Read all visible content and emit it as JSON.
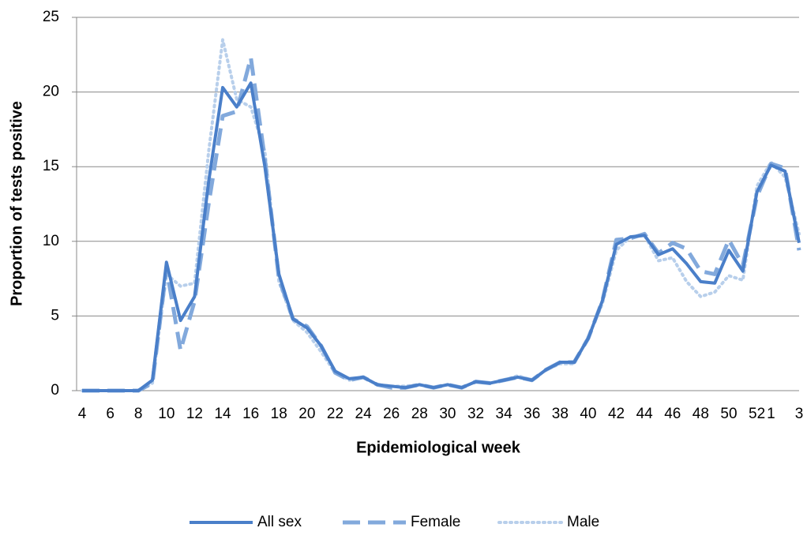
{
  "chart_data": {
    "type": "line",
    "x_label": "Epidemiological week",
    "y_label": "Proportion of tests positive",
    "categories": [
      "4",
      null,
      "6",
      null,
      "8",
      null,
      "10",
      null,
      "12",
      null,
      "14",
      null,
      "16",
      null,
      "18",
      null,
      "20",
      null,
      "22",
      null,
      "24",
      null,
      "26",
      null,
      "28",
      null,
      "30",
      null,
      "32",
      null,
      "34",
      null,
      "36",
      null,
      "38",
      null,
      "40",
      null,
      "42",
      null,
      "44",
      null,
      "46",
      null,
      "48",
      null,
      "50",
      null,
      "52",
      "1",
      null,
      "3"
    ],
    "series": [
      {
        "name": "All sex",
        "color": "#4a7fc9",
        "style": "solid",
        "values": [
          0,
          0,
          0,
          0,
          0,
          0.7,
          8.6,
          4.7,
          6.3,
          14,
          20.3,
          19,
          20.6,
          15,
          7.8,
          4.8,
          4.2,
          3,
          1.3,
          0.8,
          0.9,
          0.4,
          0.3,
          0.2,
          0.4,
          0.2,
          0.4,
          0.2,
          0.6,
          0.5,
          0.7,
          0.9,
          0.7,
          1.4,
          1.9,
          1.9,
          3.5,
          6,
          9.8,
          10.3,
          10.4,
          9.1,
          9.5,
          8.5,
          7.3,
          7.2,
          9.4,
          8,
          13.3,
          15.1,
          14.7,
          9.9
        ]
      },
      {
        "name": "Female",
        "color": "#82a9dc",
        "style": "dashed",
        "values": [
          0,
          0,
          0,
          0,
          0,
          0.5,
          8.2,
          2.7,
          6,
          12.5,
          18.4,
          18.7,
          22.3,
          15.5,
          7.5,
          4.8,
          4.3,
          3,
          1.2,
          0.7,
          0.9,
          0.4,
          0.2,
          0.2,
          0.4,
          0.2,
          0.4,
          0.2,
          0.6,
          0.5,
          0.7,
          0.9,
          0.7,
          1.4,
          1.9,
          1.9,
          3.5,
          6,
          10.1,
          10.2,
          10.5,
          9.2,
          9.9,
          9.5,
          8,
          7.8,
          10.1,
          8.4,
          13,
          15.2,
          14.9,
          9.4
        ]
      },
      {
        "name": "Male",
        "color": "#b8cfeb",
        "style": "dotted",
        "values": [
          0,
          0,
          0,
          0,
          0,
          0.5,
          7.8,
          7,
          7.2,
          16,
          23.5,
          19.5,
          19,
          16,
          7.3,
          4.7,
          3.9,
          2.6,
          1.2,
          0.7,
          0.9,
          0.4,
          0.3,
          0.3,
          0.4,
          0.2,
          0.4,
          0.2,
          0.6,
          0.5,
          0.7,
          1,
          0.7,
          1.4,
          1.8,
          1.8,
          3.6,
          5.8,
          9.4,
          10.3,
          10.4,
          8.7,
          8.9,
          7.3,
          6.3,
          6.6,
          7.7,
          7.4,
          13.7,
          15.3,
          14.3,
          10.5
        ]
      }
    ],
    "ylim": [
      0,
      25
    ],
    "yticks": [
      0,
      5,
      10,
      15,
      20,
      25
    ],
    "grid": true,
    "legend": "bottom"
  }
}
